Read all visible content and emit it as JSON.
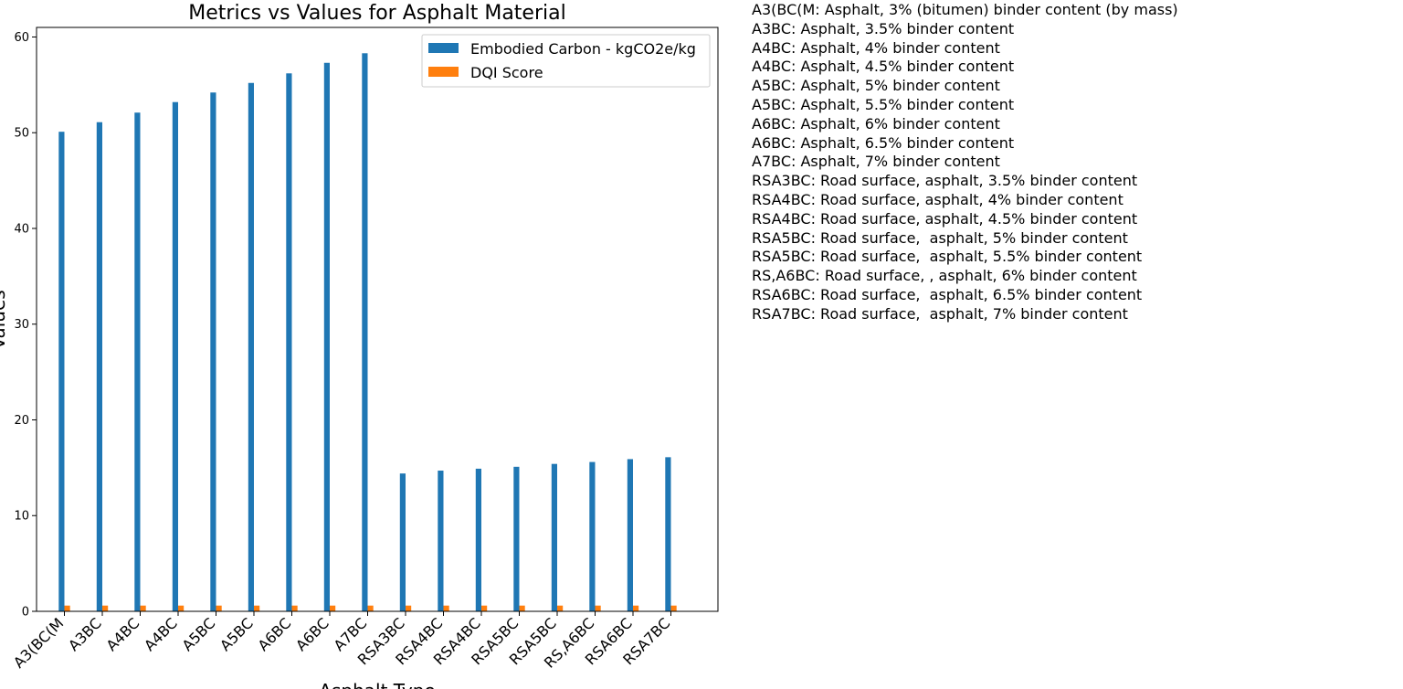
{
  "chart_data": {
    "type": "bar",
    "title": "Metrics vs Values for Asphalt Material",
    "xlabel": "Asphalt Type",
    "ylabel": "Values",
    "ylim": [
      0,
      61
    ],
    "yticks": [
      0,
      10,
      20,
      30,
      40,
      50,
      60
    ],
    "grid": false,
    "legend_position": "top-right",
    "categories": [
      "A3(BC(M",
      "A3BC",
      "A4BC",
      "A4BC",
      "A5BC",
      "A5BC",
      "A6BC",
      "A6BC",
      "A7BC",
      "RSA3BC",
      "RSA4BC",
      "RSA4BC",
      "RSA5BC",
      "RSA5BC",
      "RS,A6BC",
      "RSA6BC",
      "RSA7BC"
    ],
    "series": [
      {
        "name": "Embodied Carbon - kgCO2e/kg",
        "color": "#1f77b4",
        "values": [
          50.1,
          51.1,
          52.1,
          53.2,
          54.2,
          55.2,
          56.2,
          57.3,
          58.3,
          14.4,
          14.7,
          14.9,
          15.1,
          15.4,
          15.6,
          15.9,
          16.1
        ]
      },
      {
        "name": "DQI Score",
        "color": "#ff7f0e",
        "values": [
          0.6,
          0.6,
          0.6,
          0.6,
          0.6,
          0.6,
          0.6,
          0.6,
          0.6,
          0.6,
          0.6,
          0.6,
          0.6,
          0.6,
          0.6,
          0.6,
          0.6
        ]
      }
    ]
  },
  "annotations": [
    "A3(BC(M: Asphalt, 3% (bitumen) binder content (by mass)",
    "A3BC: Asphalt, 3.5% binder content",
    "A4BC: Asphalt, 4% binder content",
    "A4BC: Asphalt, 4.5% binder content",
    "A5BC: Asphalt, 5% binder content",
    "A5BC: Asphalt, 5.5% binder content",
    "A6BC: Asphalt, 6% binder content",
    "A6BC: Asphalt, 6.5% binder content",
    "A7BC: Asphalt, 7% binder content",
    "RSA3BC: Road surface, asphalt, 3.5% binder content",
    "RSA4BC: Road surface, asphalt, 4% binder content",
    "RSA4BC: Road surface, asphalt, 4.5% binder content",
    "RSA5BC: Road surface,  asphalt, 5% binder content",
    "RSA5BC: Road surface,  asphalt, 5.5% binder content",
    "RS,A6BC: Road surface, , asphalt, 6% binder content",
    "RSA6BC: Road surface,  asphalt, 6.5% binder content",
    "RSA7BC: Road surface,  asphalt, 7% binder content"
  ]
}
